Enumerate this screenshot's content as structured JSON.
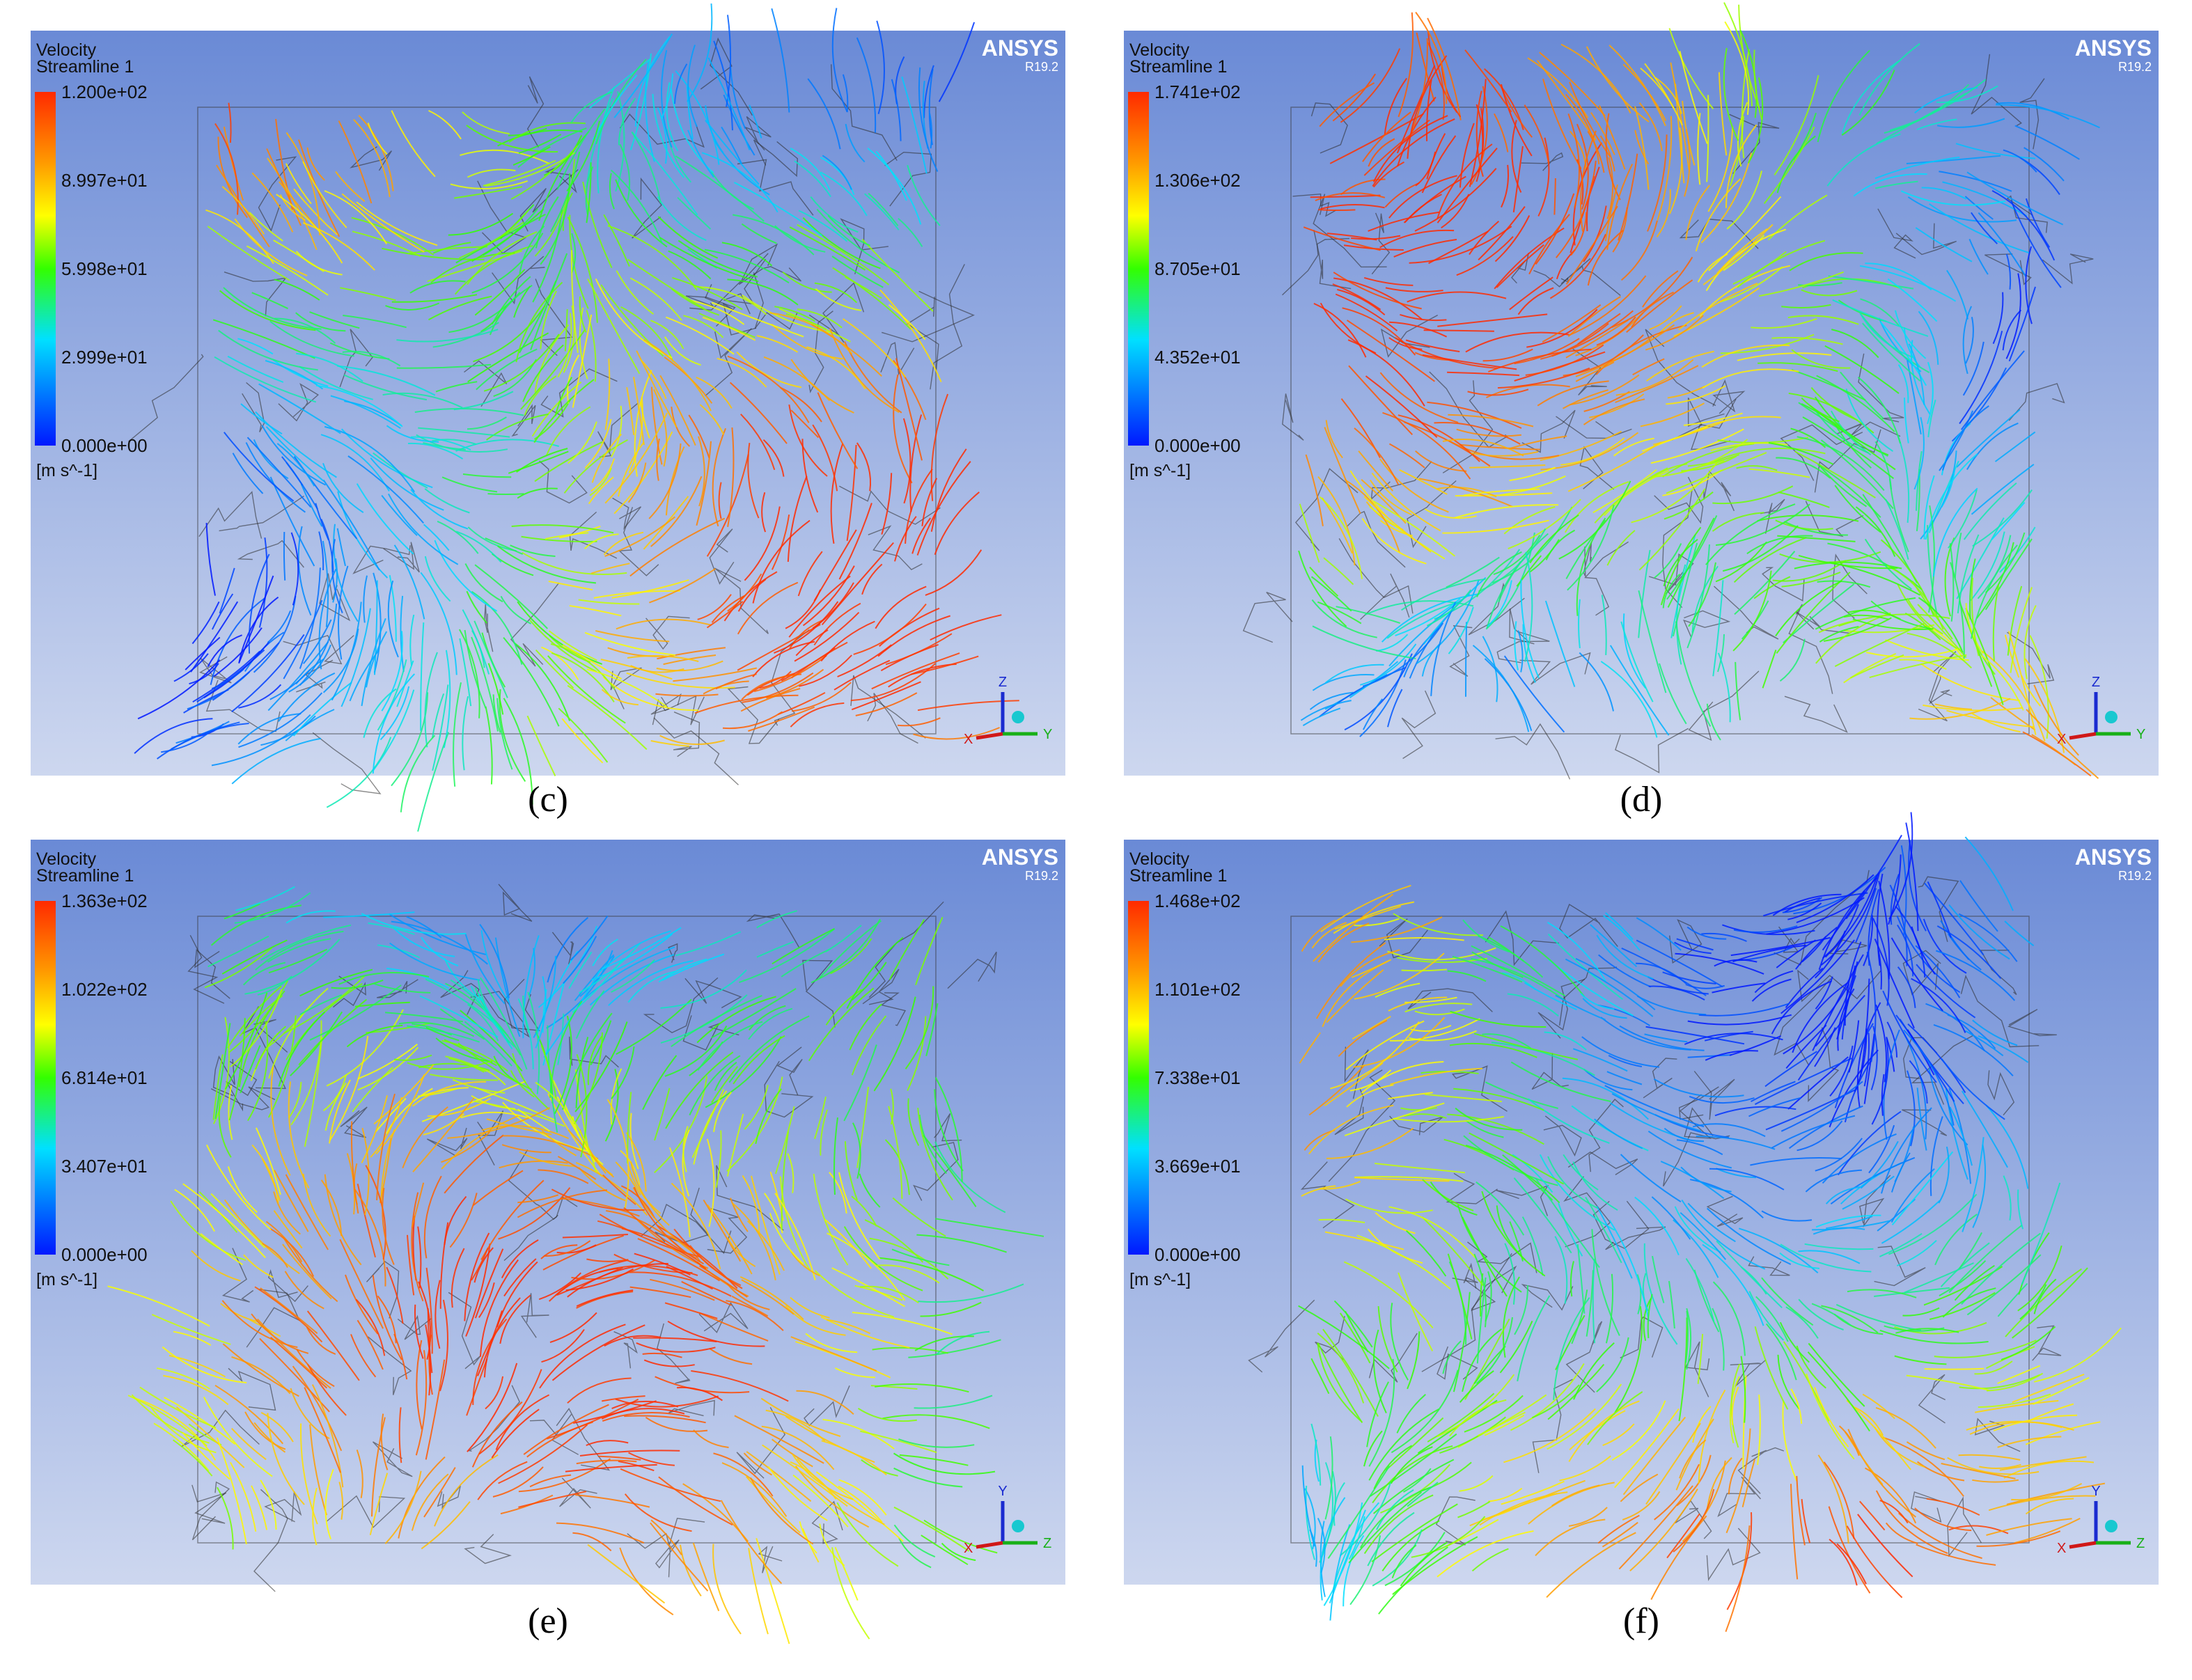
{
  "panels": [
    {
      "caption": "(c)",
      "legend_title": "Velocity",
      "legend_subtitle": "Streamline 1",
      "colorbar_labels": [
        "1.200e+02",
        "8.997e+01",
        "5.998e+01",
        "2.999e+01",
        "0.000e+00"
      ],
      "unit": "[m s^-1]",
      "brand": "ANSYS",
      "version": "R19.2",
      "axes": {
        "up": "Z",
        "right": "Y",
        "other": "X"
      }
    },
    {
      "caption": "(d)",
      "legend_title": "Velocity",
      "legend_subtitle": "Streamline 1",
      "colorbar_labels": [
        "1.741e+02",
        "1.306e+02",
        "8.705e+01",
        "4.352e+01",
        "0.000e+00"
      ],
      "unit": "[m s^-1]",
      "brand": "ANSYS",
      "version": "R19.2",
      "axes": {
        "up": "Z",
        "right": "Y",
        "other": "X"
      }
    },
    {
      "caption": "(e)",
      "legend_title": "Velocity",
      "legend_subtitle": "Streamline 1",
      "colorbar_labels": [
        "1.363e+02",
        "1.022e+02",
        "6.814e+01",
        "3.407e+01",
        "0.000e+00"
      ],
      "unit": "[m s^-1]",
      "brand": "ANSYS",
      "version": "R19.2",
      "axes": {
        "up": "Y",
        "right": "Z",
        "other": "X"
      }
    },
    {
      "caption": "(f)",
      "legend_title": "Velocity",
      "legend_subtitle": "Streamline 1",
      "colorbar_labels": [
        "1.468e+02",
        "1.101e+02",
        "7.338e+01",
        "3.669e+01",
        "0.000e+00"
      ],
      "unit": "[m s^-1]",
      "brand": "ANSYS",
      "version": "R19.2",
      "axes": {
        "up": "Y",
        "right": "Z",
        "other": "X"
      }
    }
  ]
}
